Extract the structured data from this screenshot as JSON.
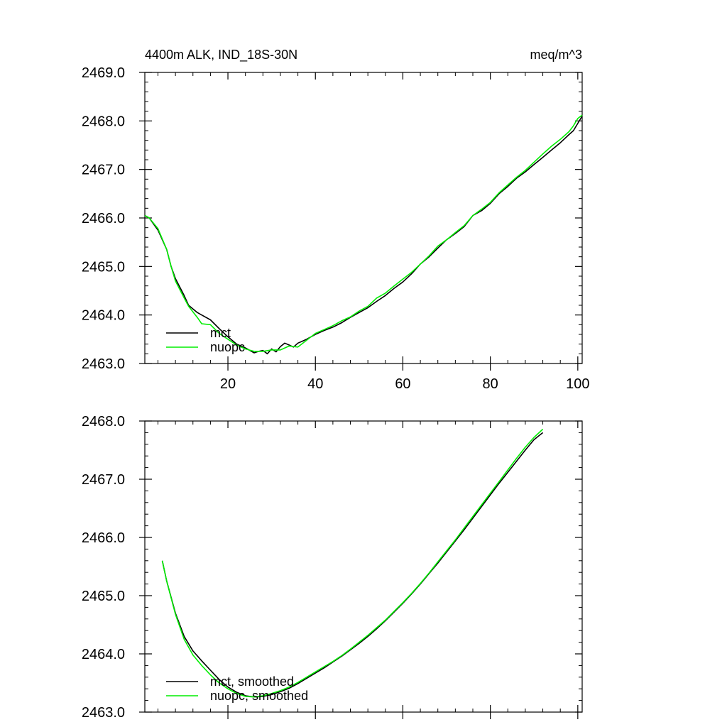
{
  "header": {
    "title": "4400m ALK, IND_18S-30N",
    "units": "meq/m^3"
  },
  "colors": {
    "mct": "#000000",
    "nuopc": "#00ee00",
    "axis": "#000000",
    "background": "#ffffff"
  },
  "chart_data": [
    {
      "type": "line",
      "title": "4400m ALK, IND_18S-30N",
      "units": "meq/m^3",
      "xlabel": "",
      "ylabel": "",
      "xlim": [
        1,
        101
      ],
      "ylim": [
        2463.0,
        2469.0
      ],
      "x_ticks": [
        20,
        40,
        60,
        80,
        100
      ],
      "x_tick_labels": [
        "20",
        "40",
        "60",
        "80",
        "100"
      ],
      "y_ticks": [
        2463.0,
        2464.0,
        2465.0,
        2466.0,
        2467.0,
        2468.0,
        2469.0
      ],
      "y_tick_labels": [
        "2463.0",
        "2464.0",
        "2465.0",
        "2466.0",
        "2467.0",
        "2468.0",
        "2469.0"
      ],
      "grid": false,
      "legend": "bottom-left",
      "series": [
        {
          "name": "mct",
          "color": "#000000",
          "points": [
            [
              1,
              2466.05
            ],
            [
              2,
              2466.0
            ],
            [
              4,
              2465.75
            ],
            [
              6,
              2465.35
            ],
            [
              7,
              2465.0
            ],
            [
              8,
              2464.75
            ],
            [
              10,
              2464.4
            ],
            [
              11,
              2464.2
            ],
            [
              13,
              2464.05
            ],
            [
              14,
              2464.0
            ],
            [
              16,
              2463.9
            ],
            [
              18,
              2463.72
            ],
            [
              20,
              2463.55
            ],
            [
              22,
              2463.4
            ],
            [
              24,
              2463.32
            ],
            [
              26,
              2463.22
            ],
            [
              27,
              2463.25
            ],
            [
              28,
              2463.27
            ],
            [
              29,
              2463.2
            ],
            [
              30,
              2463.3
            ],
            [
              31,
              2463.24
            ],
            [
              32,
              2463.35
            ],
            [
              33,
              2463.42
            ],
            [
              34,
              2463.38
            ],
            [
              35,
              2463.34
            ],
            [
              36,
              2463.42
            ],
            [
              37,
              2463.46
            ],
            [
              38,
              2463.5
            ],
            [
              40,
              2463.6
            ],
            [
              42,
              2463.68
            ],
            [
              44,
              2463.75
            ],
            [
              46,
              2463.84
            ],
            [
              48,
              2463.95
            ],
            [
              50,
              2464.05
            ],
            [
              52,
              2464.15
            ],
            [
              54,
              2464.28
            ],
            [
              56,
              2464.4
            ],
            [
              58,
              2464.55
            ],
            [
              60,
              2464.68
            ],
            [
              62,
              2464.85
            ],
            [
              64,
              2465.05
            ],
            [
              66,
              2465.2
            ],
            [
              68,
              2465.38
            ],
            [
              70,
              2465.55
            ],
            [
              72,
              2465.68
            ],
            [
              74,
              2465.82
            ],
            [
              76,
              2466.05
            ],
            [
              78,
              2466.15
            ],
            [
              80,
              2466.3
            ],
            [
              82,
              2466.5
            ],
            [
              84,
              2466.65
            ],
            [
              86,
              2466.82
            ],
            [
              88,
              2466.95
            ],
            [
              90,
              2467.1
            ],
            [
              92,
              2467.25
            ],
            [
              94,
              2467.4
            ],
            [
              96,
              2467.55
            ],
            [
              98,
              2467.72
            ],
            [
              99,
              2467.8
            ],
            [
              101,
              2468.1
            ]
          ]
        },
        {
          "name": "nuopc",
          "color": "#00ee00",
          "points": [
            [
              1,
              2466.05
            ],
            [
              2,
              2466.0
            ],
            [
              4,
              2465.78
            ],
            [
              6,
              2465.35
            ],
            [
              7,
              2465.0
            ],
            [
              8,
              2464.7
            ],
            [
              10,
              2464.35
            ],
            [
              11,
              2464.18
            ],
            [
              13,
              2463.95
            ],
            [
              14,
              2463.82
            ],
            [
              16,
              2463.8
            ],
            [
              18,
              2463.62
            ],
            [
              20,
              2463.5
            ],
            [
              22,
              2463.38
            ],
            [
              24,
              2463.3
            ],
            [
              26,
              2463.25
            ],
            [
              28,
              2463.25
            ],
            [
              30,
              2463.28
            ],
            [
              32,
              2463.28
            ],
            [
              34,
              2463.36
            ],
            [
              36,
              2463.34
            ],
            [
              38,
              2463.48
            ],
            [
              40,
              2463.62
            ],
            [
              42,
              2463.7
            ],
            [
              44,
              2463.78
            ],
            [
              46,
              2463.88
            ],
            [
              48,
              2463.96
            ],
            [
              50,
              2464.08
            ],
            [
              52,
              2464.18
            ],
            [
              54,
              2464.35
            ],
            [
              56,
              2464.45
            ],
            [
              58,
              2464.6
            ],
            [
              60,
              2464.74
            ],
            [
              62,
              2464.88
            ],
            [
              64,
              2465.05
            ],
            [
              66,
              2465.22
            ],
            [
              68,
              2465.42
            ],
            [
              70,
              2465.55
            ],
            [
              72,
              2465.7
            ],
            [
              74,
              2465.84
            ],
            [
              76,
              2466.05
            ],
            [
              78,
              2466.18
            ],
            [
              80,
              2466.32
            ],
            [
              82,
              2466.52
            ],
            [
              84,
              2466.68
            ],
            [
              86,
              2466.84
            ],
            [
              88,
              2466.98
            ],
            [
              90,
              2467.15
            ],
            [
              92,
              2467.32
            ],
            [
              94,
              2467.48
            ],
            [
              96,
              2467.62
            ],
            [
              98,
              2467.78
            ],
            [
              99,
              2467.9
            ],
            [
              100,
              2468.05
            ],
            [
              101,
              2468.12
            ]
          ]
        }
      ]
    },
    {
      "type": "line",
      "title": "",
      "xlabel": "",
      "ylabel": "",
      "xlim": [
        1,
        101
      ],
      "ylim": [
        2463.0,
        2468.0
      ],
      "x_ticks": [
        20,
        40,
        60,
        80,
        100
      ],
      "x_tick_labels": [],
      "y_ticks": [
        2463.0,
        2464.0,
        2465.0,
        2466.0,
        2467.0,
        2468.0
      ],
      "y_tick_labels": [
        "2463.0",
        "2464.0",
        "2465.0",
        "2466.0",
        "2467.0",
        "2468.0"
      ],
      "grid": false,
      "legend": "bottom-left",
      "series": [
        {
          "name": "mct, smoothed",
          "color": "#000000",
          "points": [
            [
              5,
              2465.6
            ],
            [
              6,
              2465.25
            ],
            [
              8,
              2464.7
            ],
            [
              10,
              2464.3
            ],
            [
              12,
              2464.05
            ],
            [
              14,
              2463.88
            ],
            [
              16,
              2463.72
            ],
            [
              18,
              2463.56
            ],
            [
              20,
              2463.43
            ],
            [
              22,
              2463.34
            ],
            [
              24,
              2463.28
            ],
            [
              26,
              2463.26
            ],
            [
              28,
              2463.27
            ],
            [
              30,
              2463.3
            ],
            [
              32,
              2463.35
            ],
            [
              34,
              2463.41
            ],
            [
              36,
              2463.49
            ],
            [
              38,
              2463.58
            ],
            [
              40,
              2463.67
            ],
            [
              42,
              2463.76
            ],
            [
              44,
              2463.86
            ],
            [
              46,
              2463.96
            ],
            [
              48,
              2464.07
            ],
            [
              50,
              2464.18
            ],
            [
              52,
              2464.3
            ],
            [
              54,
              2464.43
            ],
            [
              56,
              2464.57
            ],
            [
              58,
              2464.72
            ],
            [
              60,
              2464.87
            ],
            [
              62,
              2465.03
            ],
            [
              64,
              2465.2
            ],
            [
              66,
              2465.38
            ],
            [
              68,
              2465.56
            ],
            [
              70,
              2465.75
            ],
            [
              72,
              2465.94
            ],
            [
              74,
              2466.13
            ],
            [
              76,
              2466.33
            ],
            [
              78,
              2466.53
            ],
            [
              80,
              2466.73
            ],
            [
              82,
              2466.93
            ],
            [
              84,
              2467.12
            ],
            [
              86,
              2467.31
            ],
            [
              88,
              2467.5
            ],
            [
              90,
              2467.68
            ],
            [
              92,
              2467.8
            ]
          ]
        },
        {
          "name": "nuopc, smoothed",
          "color": "#00ee00",
          "points": [
            [
              5,
              2465.6
            ],
            [
              6,
              2465.25
            ],
            [
              8,
              2464.68
            ],
            [
              10,
              2464.25
            ],
            [
              12,
              2463.98
            ],
            [
              14,
              2463.8
            ],
            [
              16,
              2463.64
            ],
            [
              18,
              2463.5
            ],
            [
              20,
              2463.4
            ],
            [
              22,
              2463.32
            ],
            [
              24,
              2463.27
            ],
            [
              26,
              2463.26
            ],
            [
              28,
              2463.28
            ],
            [
              30,
              2463.32
            ],
            [
              32,
              2463.37
            ],
            [
              34,
              2463.43
            ],
            [
              36,
              2463.51
            ],
            [
              38,
              2463.6
            ],
            [
              40,
              2463.69
            ],
            [
              42,
              2463.78
            ],
            [
              44,
              2463.87
            ],
            [
              46,
              2463.97
            ],
            [
              48,
              2464.08
            ],
            [
              50,
              2464.2
            ],
            [
              52,
              2464.32
            ],
            [
              54,
              2464.45
            ],
            [
              56,
              2464.58
            ],
            [
              58,
              2464.73
            ],
            [
              60,
              2464.88
            ],
            [
              62,
              2465.04
            ],
            [
              64,
              2465.21
            ],
            [
              66,
              2465.39
            ],
            [
              68,
              2465.58
            ],
            [
              70,
              2465.77
            ],
            [
              72,
              2465.96
            ],
            [
              74,
              2466.16
            ],
            [
              76,
              2466.36
            ],
            [
              78,
              2466.56
            ],
            [
              80,
              2466.76
            ],
            [
              82,
              2466.96
            ],
            [
              84,
              2467.16
            ],
            [
              86,
              2467.36
            ],
            [
              88,
              2467.55
            ],
            [
              90,
              2467.72
            ],
            [
              92,
              2467.86
            ]
          ]
        }
      ]
    }
  ]
}
